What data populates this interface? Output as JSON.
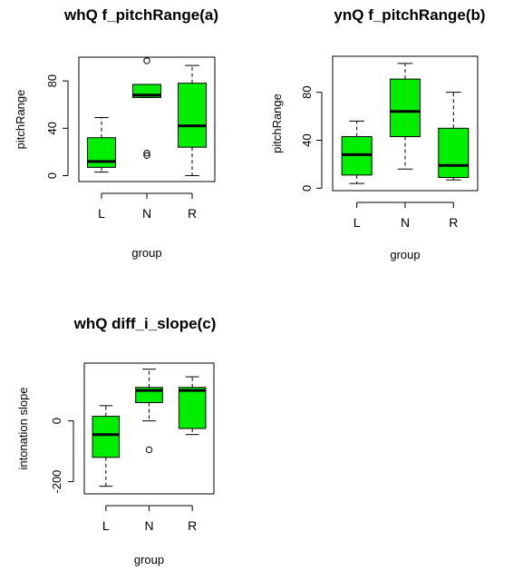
{
  "colors": {
    "box_fill": "#00ee00",
    "stroke": "#000000",
    "background": "#ffffff"
  },
  "chart_data": [
    {
      "type": "box",
      "title": "whQ f_pitchRange(a)",
      "xlabel": "group",
      "ylabel": "pitchRange",
      "categories": [
        "L",
        "N",
        "R"
      ],
      "ylim": [
        -5,
        100
      ],
      "yticks": [
        "0",
        "40",
        "80"
      ],
      "yticks_values": [
        0,
        40,
        80
      ],
      "boxes": [
        {
          "category": "L",
          "whisker_low": 3,
          "q1": 7,
          "median": 12,
          "q3": 32,
          "whisker_high": 49,
          "outliers": []
        },
        {
          "category": "N",
          "whisker_low": 66,
          "q1": 66,
          "median": 68,
          "q3": 77,
          "whisker_high": 77,
          "outliers": [
            17,
            19,
            97
          ]
        },
        {
          "category": "R",
          "whisker_low": 0,
          "q1": 24,
          "median": 42,
          "q3": 78,
          "whisker_high": 93,
          "outliers": []
        }
      ]
    },
    {
      "type": "box",
      "title": "ynQ f_pitchRange(b)",
      "xlabel": "group",
      "ylabel": "pitchRange",
      "categories": [
        "L",
        "N",
        "R"
      ],
      "ylim": [
        -2,
        110
      ],
      "yticks": [
        "0",
        "40",
        "80"
      ],
      "yticks_values": [
        0,
        40,
        80
      ],
      "boxes": [
        {
          "category": "L",
          "whisker_low": 4,
          "q1": 11,
          "median": 28,
          "q3": 43,
          "whisker_high": 56,
          "outliers": []
        },
        {
          "category": "N",
          "whisker_low": 16,
          "q1": 43,
          "median": 64,
          "q3": 91,
          "whisker_high": 104,
          "outliers": []
        },
        {
          "category": "R",
          "whisker_low": 7,
          "q1": 9,
          "median": 19,
          "q3": 50,
          "whisker_high": 80,
          "outliers": []
        }
      ]
    },
    {
      "type": "box",
      "title": "whQ diff_i_slope(c)",
      "xlabel": "group",
      "ylabel": "intonation slope",
      "categories": [
        "L",
        "N",
        "R"
      ],
      "ylim": [
        -240,
        190
      ],
      "yticks": [
        "-200",
        "0"
      ],
      "yticks_values": [
        -200,
        0
      ],
      "boxes": [
        {
          "category": "L",
          "whisker_low": -215,
          "q1": -120,
          "median": -45,
          "q3": 15,
          "whisker_high": 50,
          "outliers": []
        },
        {
          "category": "N",
          "whisker_low": 0,
          "q1": 60,
          "median": 100,
          "q3": 110,
          "whisker_high": 170,
          "outliers": [
            -95
          ]
        },
        {
          "category": "R",
          "whisker_low": -45,
          "q1": -25,
          "median": 100,
          "q3": 110,
          "whisker_high": 145,
          "outliers": []
        }
      ]
    }
  ]
}
